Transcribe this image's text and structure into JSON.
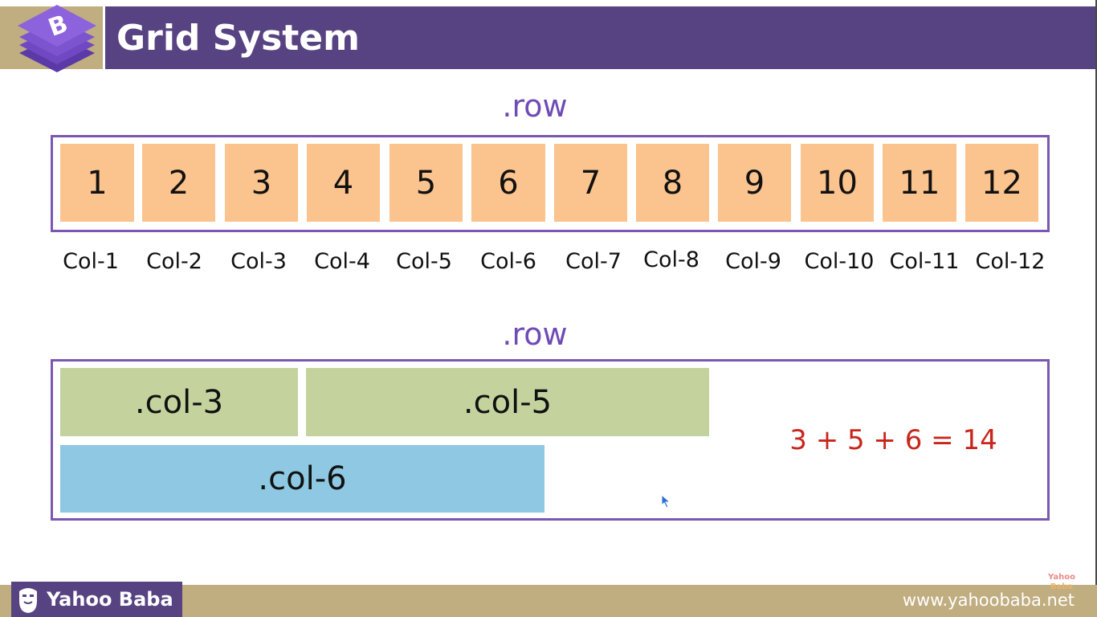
{
  "header": {
    "title": "Grid System",
    "logo_letter": "B"
  },
  "colors": {
    "header_purple": "#574382",
    "accent_gold": "#c0ad80",
    "row_border": "#7b57b1",
    "row_label": "#6f4bb5",
    "cell_orange": "#fbc38d",
    "block_green": "#c4d39e",
    "block_blue": "#8ec8e2",
    "equation_red": "#c8251b"
  },
  "row_top": {
    "label": ".row",
    "cells": [
      "1",
      "2",
      "3",
      "4",
      "5",
      "6",
      "7",
      "8",
      "9",
      "10",
      "11",
      "12"
    ],
    "col_labels": [
      "Col-1",
      "Col-2",
      "Col-3",
      "Col-4",
      "Col-5",
      "Col-6",
      "Col-7",
      "Col-8",
      "Col-9",
      "Col-10",
      "Col-11",
      "Col-12"
    ]
  },
  "row_bottom": {
    "label": ".row",
    "blocks": {
      "col3": ".col-3",
      "col5": ".col-5",
      "col6": ".col-6"
    },
    "equation": "3 + 5 + 6 = 14"
  },
  "footer": {
    "brand": "Yahoo Baba",
    "url": "www.yahoobaba.net"
  },
  "icons": {
    "logo": "bootstrap-layers-icon",
    "brand": "bearded-face-icon",
    "cursor": "mouse-pointer-icon",
    "watermark": "yahoo-baba-watermark"
  }
}
